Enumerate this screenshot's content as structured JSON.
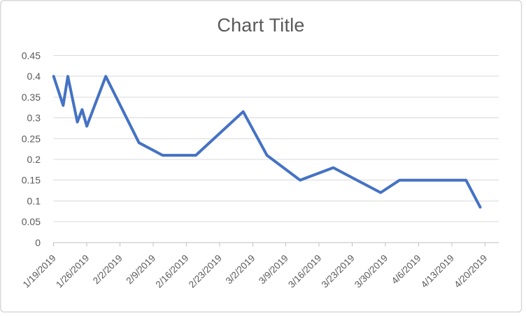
{
  "chart_data": {
    "type": "line",
    "title": "Chart Title",
    "legend": "none",
    "grid": true,
    "series": [
      {
        "color": "#4472C4",
        "points": [
          {
            "date": "1/19/2019",
            "value": 0.4
          },
          {
            "date": "1/21/2019",
            "value": 0.33
          },
          {
            "date": "1/22/2019",
            "value": 0.4
          },
          {
            "date": "1/24/2019",
            "value": 0.29
          },
          {
            "date": "1/25/2019",
            "value": 0.32
          },
          {
            "date": "1/26/2019",
            "value": 0.28
          },
          {
            "date": "1/30/2019",
            "value": 0.4
          },
          {
            "date": "2/6/2019",
            "value": 0.24
          },
          {
            "date": "2/11/2019",
            "value": 0.21
          },
          {
            "date": "2/18/2019",
            "value": 0.21
          },
          {
            "date": "2/28/2019",
            "value": 0.315
          },
          {
            "date": "3/5/2019",
            "value": 0.21
          },
          {
            "date": "3/12/2019",
            "value": 0.15
          },
          {
            "date": "3/19/2019",
            "value": 0.18
          },
          {
            "date": "3/29/2019",
            "value": 0.12
          },
          {
            "date": "4/2/2019",
            "value": 0.15
          },
          {
            "date": "4/16/2019",
            "value": 0.15
          },
          {
            "date": "4/19/2019",
            "value": 0.085
          }
        ]
      }
    ],
    "x_axis": {
      "start_date": "1/19/2019",
      "tick_interval_days": 7,
      "tick_labels": [
        "1/19/2019",
        "1/26/2019",
        "2/2/2019",
        "2/9/2019",
        "2/16/2019",
        "2/23/2019",
        "3/2/2019",
        "3/9/2019",
        "3/16/2019",
        "3/23/2019",
        "3/30/2019",
        "4/6/2019",
        "4/13/2019",
        "4/20/2019"
      ]
    },
    "y_axis": {
      "min": 0,
      "max": 0.45,
      "step": 0.05,
      "tick_labels": [
        "0",
        "0.05",
        "0.1",
        "0.15",
        "0.2",
        "0.25",
        "0.3",
        "0.35",
        "0.4",
        "0.45"
      ]
    },
    "colors": {
      "line": "#4472C4",
      "gridline": "#D9D9D9",
      "axis": "#BFBFBF",
      "label_text": "#595959",
      "title_text": "#595959",
      "border": "#D9D9D9",
      "background": "#FFFFFF"
    }
  }
}
